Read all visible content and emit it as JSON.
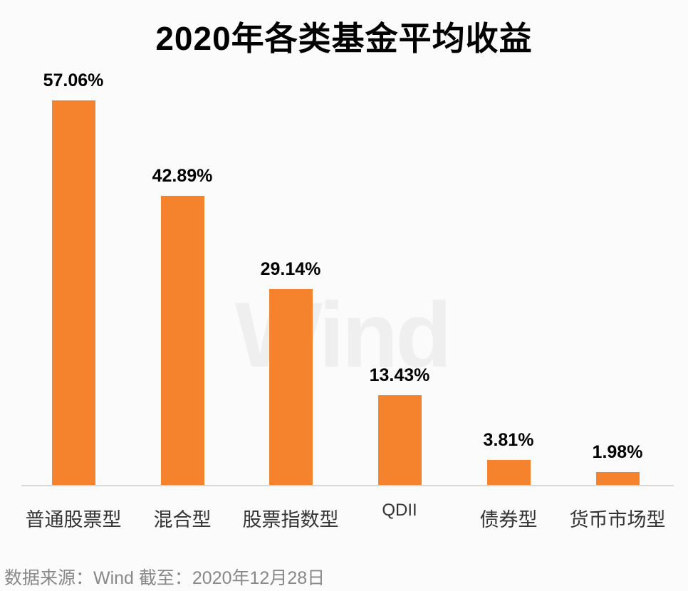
{
  "title": "2020年各类基金平均收益",
  "watermark": "Wind",
  "source": "数据来源：Wind  截至：2020年12月28日",
  "colors": {
    "bar": "#f5832d",
    "axis": "#d9d9d9",
    "background": "#fbfbfb"
  },
  "chart_data": {
    "type": "bar",
    "title": "2020年各类基金平均收益",
    "xlabel": "",
    "ylabel": "",
    "categories": [
      "普通股票型",
      "混合型",
      "股票指数型",
      "QDII",
      "债券型",
      "货币市场型"
    ],
    "values": [
      57.06,
      42.89,
      29.14,
      13.43,
      3.81,
      1.98
    ],
    "labels": [
      "57.06%",
      "42.89%",
      "29.14%",
      "13.43%",
      "3.81%",
      "1.98%"
    ],
    "unit": "%",
    "ylim": [
      0,
      60
    ],
    "grid": false,
    "legend": null,
    "annotations": [
      "数据来源：Wind  截至：2020年12月28日"
    ]
  }
}
